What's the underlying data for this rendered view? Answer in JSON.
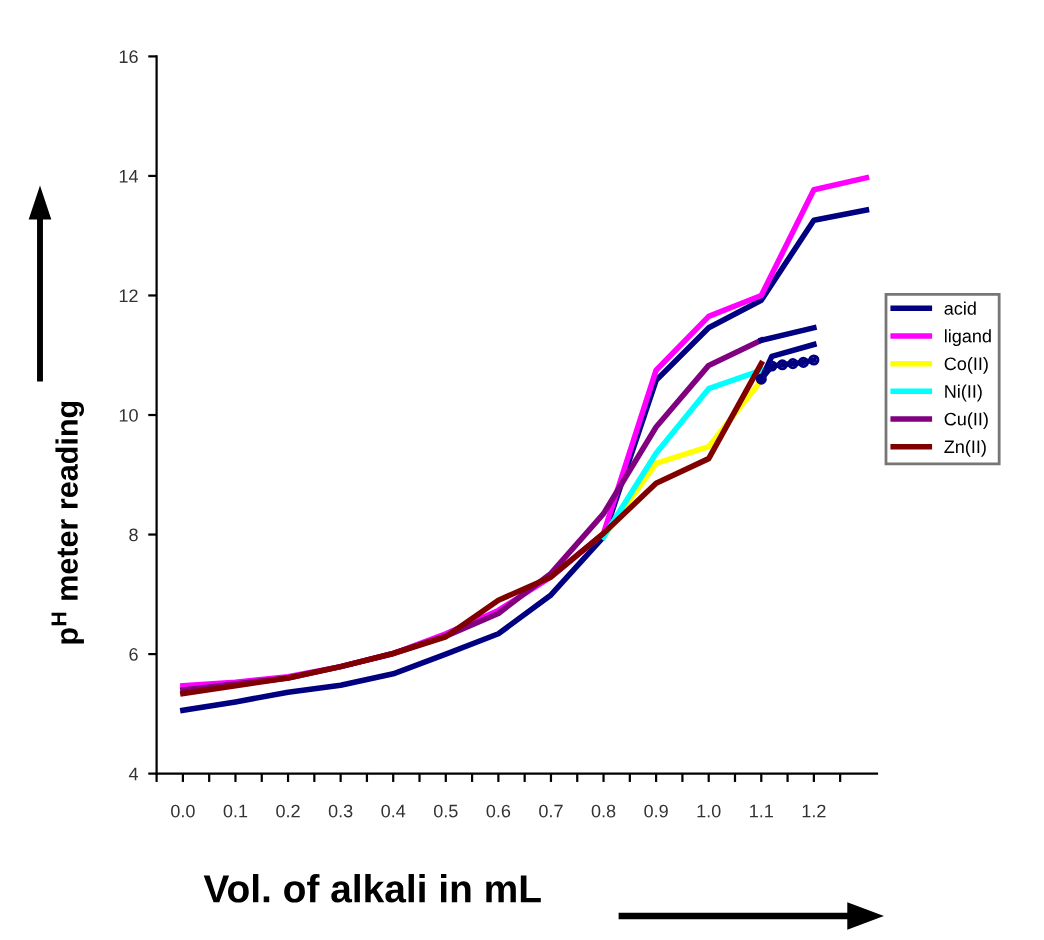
{
  "chart_data": {
    "type": "line",
    "xlabel": "Vol. of alkali in mL",
    "ylabel": "p$^{H}$ meter reading",
    "x": [
      0.0,
      0.1,
      0.2,
      0.3,
      0.4,
      0.5,
      0.6,
      0.7,
      0.8,
      0.9,
      1.0,
      1.1,
      1.2,
      1.3
    ],
    "series": [
      {
        "name": "acid",
        "color": "#000080",
        "values": [
          5.06,
          5.2,
          5.36,
          5.48,
          5.67,
          6.0,
          6.34,
          6.99,
          7.96,
          10.58,
          11.46,
          11.92,
          13.26,
          13.43
        ]
      },
      {
        "name": "ligand",
        "color": "#ff00ff",
        "values": [
          5.47,
          5.53,
          5.62,
          5.79,
          6.01,
          6.34,
          6.73,
          7.29,
          8.02,
          10.75,
          11.65,
          12.0,
          13.77,
          13.97
        ]
      },
      {
        "name": "Co(II)",
        "color": "#ffff00",
        "x": [
          0.8,
          0.9,
          1.0,
          1.1
        ],
        "values": [
          7.96,
          9.19,
          9.47,
          10.58
        ]
      },
      {
        "name": "Ni(II)",
        "color": "#00ffff",
        "x": [
          0.8,
          0.9,
          1.0,
          1.1
        ],
        "values": [
          7.96,
          9.36,
          10.44,
          10.75
        ]
      },
      {
        "name": "Cu(II)",
        "color": "#800080",
        "x": [
          0.0,
          0.1,
          0.2,
          0.3,
          0.4,
          0.5,
          0.6,
          0.7,
          0.8,
          0.9,
          1.0,
          1.1
        ],
        "values": [
          5.4,
          5.5,
          5.6,
          5.79,
          6.01,
          6.3,
          6.68,
          7.35,
          8.35,
          9.8,
          10.83,
          11.25
        ]
      },
      {
        "name": "Zn(II)",
        "color": "#800000",
        "x": [
          0.0,
          0.1,
          0.2,
          0.3,
          0.4,
          0.5,
          0.6,
          0.7,
          0.8,
          0.9,
          1.0,
          1.1
        ],
        "values": [
          5.34,
          5.47,
          5.6,
          5.79,
          6.01,
          6.29,
          6.9,
          7.29,
          8.02,
          8.86,
          9.27,
          10.86
        ]
      },
      {
        "color": "#000080",
        "x": [
          1.1,
          1.2
        ],
        "values": [
          11.25,
          11.46
        ]
      },
      {
        "color": "#000080",
        "x": [
          1.1,
          1.12,
          1.2
        ],
        "values": [
          10.6,
          10.98,
          11.18
        ]
      },
      {
        "color": "#000080",
        "marker": "circle",
        "x": [
          1.1,
          1.12,
          1.14,
          1.16,
          1.18,
          1.2
        ],
        "values": [
          10.6,
          10.82,
          10.84,
          10.86,
          10.88,
          10.92
        ]
      }
    ],
    "xlim": [
      -0.05,
      1.32
    ],
    "xticks": [
      {
        "value": -0.05,
        "label": null
      },
      {
        "value": 0.0,
        "label": "0.0"
      },
      {
        "value": 0.05,
        "label": null
      },
      0.1,
      {
        "value": 0.15,
        "label": null
      },
      0.2,
      {
        "value": 0.25,
        "label": null
      },
      0.3,
      {
        "value": 0.35,
        "label": null
      },
      0.4,
      {
        "value": 0.45,
        "label": null
      },
      0.5,
      {
        "value": 0.55,
        "label": null
      },
      0.6,
      {
        "value": 0.65,
        "label": null
      },
      0.7,
      {
        "value": 0.75,
        "label": null
      },
      0.8,
      {
        "value": 0.85,
        "label": null
      },
      0.9,
      {
        "value": 0.95,
        "label": null
      },
      {
        "value": 1.0,
        "label": "1.0"
      },
      {
        "value": 1.05,
        "label": null
      },
      1.1,
      {
        "value": 1.15,
        "label": null
      },
      1.2,
      {
        "value": 1.25,
        "label": null
      }
    ],
    "ylim": [
      4,
      16
    ],
    "yticks": [
      4,
      6,
      8,
      10,
      12,
      14,
      16
    ],
    "grid": false,
    "legend": "right",
    "marker": "none",
    "line_style": "solid"
  }
}
